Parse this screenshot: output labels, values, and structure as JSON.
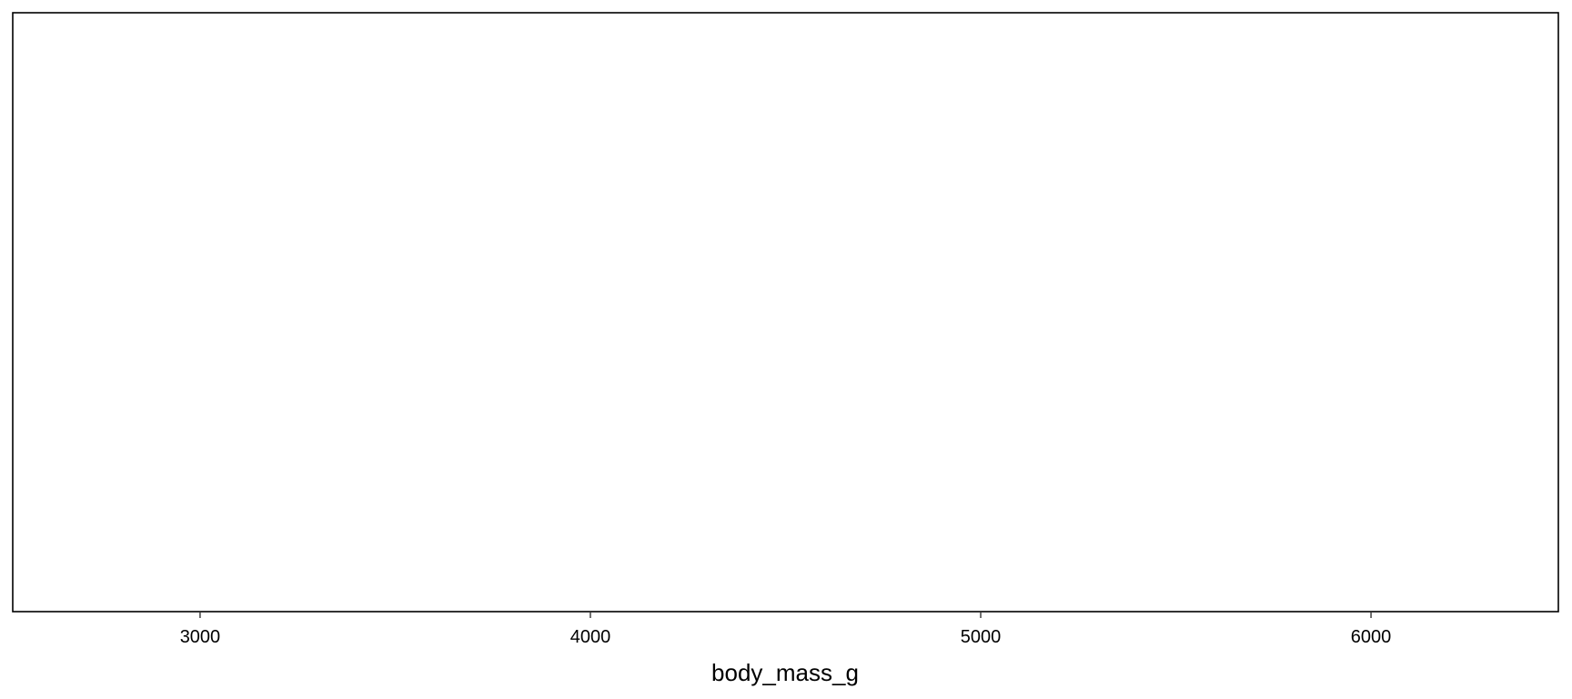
{
  "chart_data": {
    "type": "scatter",
    "title": "",
    "xlabel": "body_mass_g",
    "ylabel": "",
    "xlim": [
      2520,
      6480
    ],
    "x_ticks": [
      3000,
      4000,
      5000,
      6000
    ],
    "x_tick_labels": [
      "3000",
      "4000",
      "5000",
      "6000"
    ],
    "y_ticks": [],
    "series": [],
    "grid": false,
    "legend": "none"
  }
}
